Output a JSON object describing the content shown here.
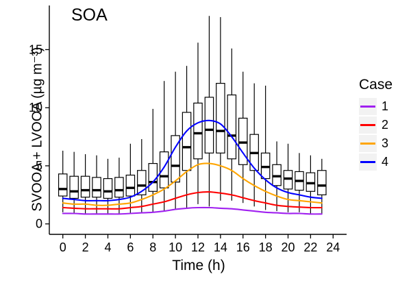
{
  "title": "SOA",
  "xlabel": "Time (h)",
  "ylabel": "SVOOA + LVOOA (µg m⁻³)",
  "legend": {
    "title": "Case",
    "items": [
      {
        "label": "1",
        "color": "#A020F0"
      },
      {
        "label": "2",
        "color": "#FF0000"
      },
      {
        "label": "3",
        "color": "#FFA500"
      },
      {
        "label": "4",
        "color": "#0000FF"
      }
    ]
  },
  "chart_data": {
    "type": "box+line",
    "title": "SOA",
    "xlabel": "Time (h)",
    "ylabel": "SVOOA + LVOOA (ug m^-3)",
    "x": [
      0,
      1,
      2,
      3,
      4,
      5,
      6,
      7,
      8,
      9,
      10,
      11,
      12,
      13,
      14,
      15,
      16,
      17,
      18,
      19,
      20,
      21,
      22,
      23
    ],
    "x_ticks": [
      0,
      2,
      4,
      6,
      8,
      10,
      12,
      14,
      16,
      18,
      20,
      22,
      24
    ],
    "y_ticks": [
      0,
      5,
      10,
      15
    ],
    "xlim": [
      -1.2,
      25.2
    ],
    "ylim": [
      -0.9,
      18.8
    ],
    "grid": false,
    "legend_position": "right",
    "boxes": [
      {
        "x": 0,
        "low": 1.0,
        "q1": 2.4,
        "median": 3.0,
        "q3": 4.3,
        "high": 6.3
      },
      {
        "x": 1,
        "low": 0.9,
        "q1": 2.2,
        "median": 2.8,
        "q3": 4.1,
        "high": 6.2
      },
      {
        "x": 2,
        "low": 0.9,
        "q1": 2.3,
        "median": 2.9,
        "q3": 4.1,
        "high": 6.0
      },
      {
        "x": 3,
        "low": 0.9,
        "q1": 2.3,
        "median": 2.9,
        "q3": 4.0,
        "high": 5.9
      },
      {
        "x": 4,
        "low": 0.8,
        "q1": 2.2,
        "median": 2.8,
        "q3": 3.9,
        "high": 5.6
      },
      {
        "x": 5,
        "low": 0.9,
        "q1": 2.3,
        "median": 2.9,
        "q3": 4.0,
        "high": 5.7
      },
      {
        "x": 6,
        "low": 0.9,
        "q1": 2.4,
        "median": 3.1,
        "q3": 4.2,
        "high": 6.9
      },
      {
        "x": 7,
        "low": 1.0,
        "q1": 2.5,
        "median": 3.3,
        "q3": 4.6,
        "high": 7.3
      },
      {
        "x": 8,
        "low": 1.0,
        "q1": 2.8,
        "median": 3.6,
        "q3": 5.2,
        "high": 9.9
      },
      {
        "x": 9,
        "low": 1.1,
        "q1": 3.1,
        "median": 4.1,
        "q3": 6.2,
        "high": 12.3
      },
      {
        "x": 10,
        "low": 1.2,
        "q1": 3.6,
        "median": 5.0,
        "q3": 7.6,
        "high": 13.1
      },
      {
        "x": 11,
        "low": 1.4,
        "q1": 4.6,
        "median": 6.6,
        "q3": 9.6,
        "high": 13.6
      },
      {
        "x": 12,
        "low": 1.7,
        "q1": 5.6,
        "median": 7.8,
        "q3": 10.4,
        "high": 15.6
      },
      {
        "x": 13,
        "low": 1.5,
        "q1": 6.1,
        "median": 8.1,
        "q3": 10.9,
        "high": 17.9
      },
      {
        "x": 14,
        "low": 2.0,
        "q1": 6.1,
        "median": 8.0,
        "q3": 12.1,
        "high": 17.8
      },
      {
        "x": 15,
        "low": 2.0,
        "q1": 5.6,
        "median": 7.6,
        "q3": 11.1,
        "high": 15.1
      },
      {
        "x": 16,
        "low": 1.8,
        "q1": 5.1,
        "median": 7.0,
        "q3": 9.1,
        "high": 13.1
      },
      {
        "x": 17,
        "low": 1.5,
        "q1": 4.6,
        "median": 6.1,
        "q3": 7.7,
        "high": 12.1
      },
      {
        "x": 18,
        "low": 1.2,
        "q1": 3.9,
        "median": 4.9,
        "q3": 6.1,
        "high": 11.9
      },
      {
        "x": 19,
        "low": 1.1,
        "q1": 3.3,
        "median": 4.1,
        "q3": 5.1,
        "high": 7.1
      },
      {
        "x": 20,
        "low": 1.0,
        "q1": 3.0,
        "median": 3.9,
        "q3": 4.6,
        "high": 6.9
      },
      {
        "x": 21,
        "low": 1.0,
        "q1": 2.9,
        "median": 3.7,
        "q3": 4.5,
        "high": 6.1
      },
      {
        "x": 22,
        "low": 0.9,
        "q1": 2.8,
        "median": 3.5,
        "q3": 4.4,
        "high": 5.9
      },
      {
        "x": 23,
        "low": 0.9,
        "q1": 2.5,
        "median": 3.3,
        "q3": 4.6,
        "high": 5.6
      }
    ],
    "series": [
      {
        "name": "1",
        "color": "#A020F0",
        "values": [
          0.9,
          0.9,
          0.85,
          0.85,
          0.85,
          0.85,
          0.9,
          0.95,
          1.0,
          1.1,
          1.25,
          1.35,
          1.4,
          1.4,
          1.35,
          1.3,
          1.2,
          1.1,
          1.0,
          0.95,
          0.9,
          0.9,
          0.85,
          0.85
        ]
      },
      {
        "name": "2",
        "color": "#FF0000",
        "values": [
          1.4,
          1.35,
          1.3,
          1.3,
          1.3,
          1.3,
          1.4,
          1.5,
          1.7,
          1.9,
          2.2,
          2.5,
          2.7,
          2.75,
          2.65,
          2.5,
          2.25,
          2.0,
          1.8,
          1.6,
          1.5,
          1.45,
          1.4,
          1.4
        ]
      },
      {
        "name": "3",
        "color": "#FFA500",
        "values": [
          1.8,
          1.7,
          1.7,
          1.6,
          1.6,
          1.7,
          1.8,
          2.1,
          2.5,
          3.0,
          3.7,
          4.5,
          5.1,
          5.2,
          5.0,
          4.6,
          3.9,
          3.3,
          2.8,
          2.4,
          2.1,
          2.0,
          1.9,
          1.8
        ]
      },
      {
        "name": "4",
        "color": "#0000FF",
        "values": [
          2.2,
          2.1,
          2.0,
          2.0,
          2.0,
          2.1,
          2.3,
          2.8,
          3.6,
          4.9,
          6.6,
          8.0,
          8.7,
          8.9,
          8.6,
          7.5,
          6.1,
          4.8,
          3.8,
          3.1,
          2.7,
          2.5,
          2.3,
          2.2
        ]
      }
    ]
  }
}
